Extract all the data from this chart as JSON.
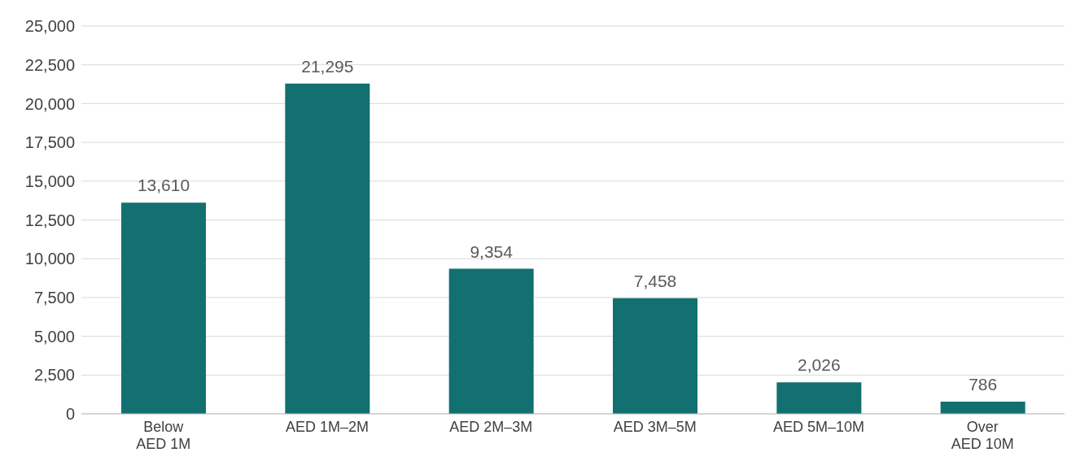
{
  "chart_data": {
    "type": "bar",
    "categories": [
      "Below AED 1M",
      "AED 1M–2M",
      "AED 2M–3M",
      "AED 3M–5M",
      "AED 5M–10M",
      "Over AED 10M"
    ],
    "values": [
      13610,
      21295,
      9354,
      7458,
      2026,
      786
    ],
    "value_labels": [
      "13,610",
      "21,295",
      "9,354",
      "7,458",
      "2,026",
      "786"
    ],
    "color": "#137070",
    "ylim": [
      0,
      25000
    ],
    "yticks": [
      0,
      {
        "value": 2500,
        "label": "2,500"
      },
      {
        "value": 5000,
        "label": "5,000"
      },
      {
        "value": 7500,
        "label": "7,500"
      },
      {
        "value": 10000,
        "label": "10,000"
      },
      {
        "value": 12500,
        "label": "12,500"
      },
      {
        "value": 15000,
        "label": "15,000"
      },
      {
        "value": 17500,
        "label": "17,500"
      },
      {
        "value": 20000,
        "label": "20,000"
      },
      {
        "value": 22500,
        "label": "22,500"
      },
      {
        "value": 25000,
        "label": "25,000"
      }
    ],
    "grid": "y"
  }
}
